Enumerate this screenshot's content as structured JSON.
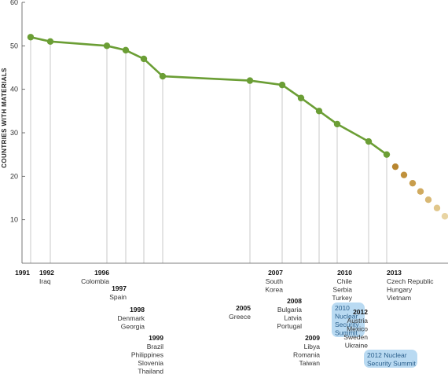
{
  "chart_data": {
    "type": "line",
    "ylabel": "COUNTRIES WITH MATERIALS",
    "ylim": [
      0,
      60
    ],
    "yticks": [
      10,
      20,
      30,
      40,
      50,
      60
    ],
    "grid": false,
    "series": [
      {
        "values": [
          52,
          51,
          50,
          49,
          47,
          43,
          42,
          41,
          38,
          35,
          32,
          28,
          25
        ]
      }
    ],
    "projection": {
      "values": [
        22.2,
        20.3,
        18.4,
        16.5,
        14.6,
        12.7,
        10.8
      ]
    },
    "events": [
      {
        "year": "1991",
        "countries": []
      },
      {
        "year": "1992",
        "countries": [
          "Iraq"
        ]
      },
      {
        "year": "1996",
        "countries": [
          "Colombia"
        ]
      },
      {
        "year": "1997",
        "countries": [
          "Spain"
        ]
      },
      {
        "year": "1998",
        "countries": [
          "Denmark",
          "Georgia"
        ]
      },
      {
        "year": "1999",
        "countries": [
          "Brazil",
          "Philippines",
          "Slovenia",
          "Thailand"
        ]
      },
      {
        "year": "2005",
        "countries": [
          "Greece"
        ]
      },
      {
        "year": "2007",
        "countries": [
          "South",
          "Korea"
        ]
      },
      {
        "year": "2008",
        "countries": [
          "Bulgaria",
          "Latvia",
          "Portugal"
        ]
      },
      {
        "year": "2009",
        "countries": [
          "Libya",
          "Romania",
          "Taiwan"
        ]
      },
      {
        "year": "2010",
        "countries": [
          "Chile",
          "Serbia",
          "Turkey"
        ]
      },
      {
        "year": "2012",
        "countries": [
          "Austria",
          "Mexico",
          "Sweden",
          "Ukraine"
        ]
      },
      {
        "year": "2013",
        "countries": [
          "Czech Republic",
          "Hungary",
          "Vietnam"
        ]
      }
    ],
    "summits": [
      {
        "lines": [
          "2010",
          "Nuclear",
          "Security",
          "Summit"
        ]
      },
      {
        "lines": [
          "2012 Nuclear",
          "Security Summit"
        ]
      }
    ],
    "colors": {
      "line": "#6b9e35",
      "point": "#6b9e35",
      "projection": [
        "#b8862f",
        "#c0913c",
        "#c89d4c",
        "#d0aa5f",
        "#d8b874",
        "#e0c68b",
        "#e8d4a3"
      ],
      "summit_fill": "#b9daf2",
      "drop_line": "#bbbbbb",
      "axis": "#555555"
    }
  }
}
